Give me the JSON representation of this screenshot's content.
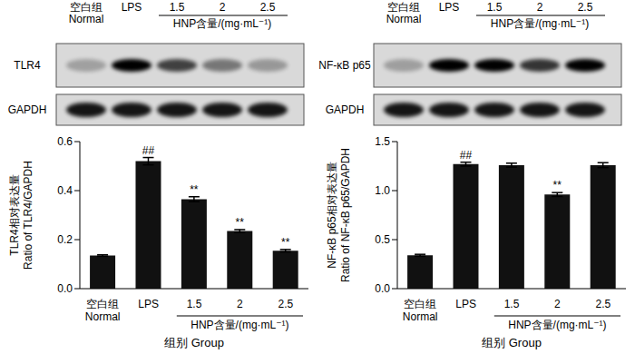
{
  "chart_data": [
    {
      "type": "bar",
      "blot_bands": [
        "TLR4",
        "GAPDH"
      ],
      "group_label": "HNP含量/(mg·mL⁻¹)",
      "categories": [
        "空白组 Normal",
        "LPS",
        "1.5",
        "2",
        "2.5"
      ],
      "values": [
        0.135,
        0.52,
        0.365,
        0.235,
        0.155
      ],
      "errors": [
        0.003,
        0.015,
        0.01,
        0.006,
        0.005
      ],
      "annotations": [
        null,
        "##",
        "**",
        "**",
        "**"
      ],
      "color": "#111111",
      "ylim": [
        0,
        0.6
      ],
      "yticks": [
        {
          "value": 0,
          "label": "0.0"
        },
        0.2,
        0.4,
        0.6
      ],
      "xlabel": "组别 Group",
      "ylabel": [
        "TLR4相对表达量",
        "Ratio of TLR4/GAPDH"
      ]
    },
    {
      "type": "bar",
      "blot_bands": [
        "NF-κB p65",
        "GAPDH"
      ],
      "group_label": "HNP含量/(mg·mL⁻¹)",
      "categories": [
        "空白组 Normal",
        "LPS",
        "1.5",
        "2",
        "2.5"
      ],
      "values": [
        0.34,
        1.27,
        1.26,
        0.96,
        1.26
      ],
      "errors": [
        0.01,
        0.02,
        0.02,
        0.02,
        0.025
      ],
      "annotations": [
        null,
        "##",
        null,
        "**",
        null
      ],
      "color": "#111111",
      "ylim": [
        0,
        1.5
      ],
      "yticks": [
        {
          "value": 0,
          "label": "0.0"
        },
        0.5,
        {
          "value": 1,
          "label": "1.0"
        },
        1.5
      ],
      "xlabel": "组别 Group",
      "ylabel": [
        "NF-κB p65相对表达量",
        "Ratio of NF-κB p65/GAPDH"
      ]
    }
  ]
}
